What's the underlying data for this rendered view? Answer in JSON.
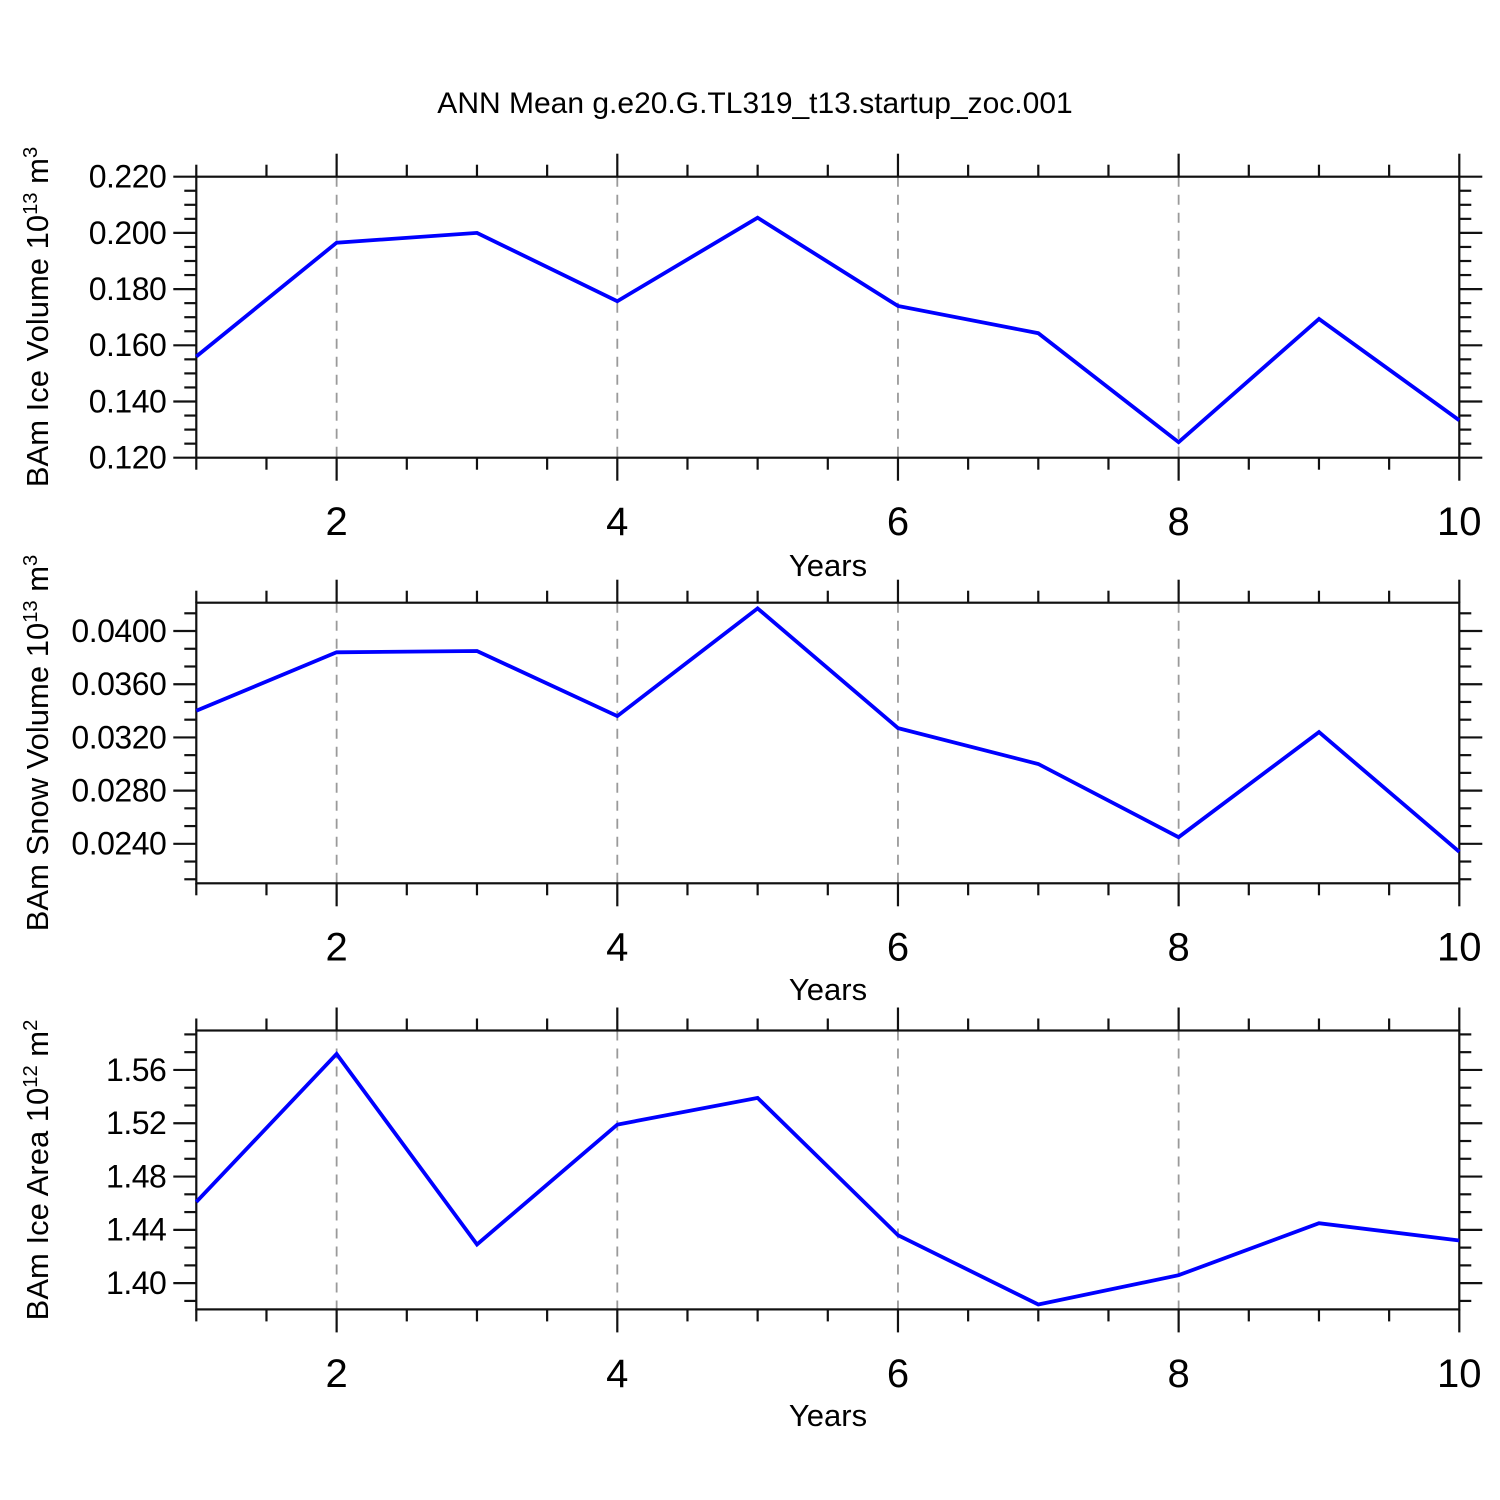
{
  "title": "ANN Mean g.e20.G.TL319_t13.startup_zoc.001",
  "colors": {
    "series_line": "#0000ff",
    "grid_line": "#9a9a9a",
    "axis": "#111111"
  },
  "chart_data": [
    {
      "type": "line",
      "name": "bam-ice-volume",
      "ylabel": "BAm Ice Volume 10^13 m^3",
      "ylabel_parts": {
        "main": "BAm Ice Volume 10",
        "sup1": "13",
        "mid": " m",
        "sup2": "3"
      },
      "xlabel": "Years",
      "x": [
        1,
        2,
        3,
        4,
        5,
        6,
        7,
        8,
        9,
        10
      ],
      "values": [
        0.156,
        0.1965,
        0.2,
        0.1757,
        0.2054,
        0.174,
        0.1643,
        0.1255,
        0.1694,
        0.1333
      ],
      "xlim": [
        1,
        10
      ],
      "ylim": [
        0.12,
        0.22
      ],
      "xticks": {
        "values": [
          2,
          4,
          6,
          8,
          10
        ],
        "labels": [
          "2",
          "4",
          "6",
          "8",
          "10"
        ]
      },
      "x_minor_step": 0.5,
      "grid_x": [
        2,
        4,
        6,
        8
      ],
      "yticks": {
        "values": [
          0.12,
          0.14,
          0.16,
          0.18,
          0.2,
          0.22
        ],
        "labels": [
          "0.120",
          "0.140",
          "0.160",
          "0.180",
          "0.200",
          "0.220"
        ]
      },
      "y_minor_per_interval": 3,
      "grid": "x-dashed-only",
      "legend": "none"
    },
    {
      "type": "line",
      "name": "bam-snow-volume",
      "ylabel": "BAm Snow Volume 10^13 m^3",
      "ylabel_parts": {
        "main": "BAm Snow Volume 10",
        "sup1": "13",
        "mid": " m",
        "sup2": "3"
      },
      "xlabel": "Years",
      "x": [
        1,
        2,
        3,
        4,
        5,
        6,
        7,
        8,
        9,
        10
      ],
      "values": [
        0.034,
        0.0384,
        0.0385,
        0.0336,
        0.0417,
        0.0327,
        0.03,
        0.0245,
        0.0324,
        0.0234
      ],
      "xlim": [
        1,
        10
      ],
      "ylim": [
        0.02103,
        0.04213
      ],
      "xticks": {
        "values": [
          2,
          4,
          6,
          8,
          10
        ],
        "labels": [
          "2",
          "4",
          "6",
          "8",
          "10"
        ]
      },
      "x_minor_step": 0.5,
      "grid_x": [
        2,
        4,
        6,
        8
      ],
      "yticks": {
        "values": [
          0.024,
          0.028,
          0.032,
          0.036,
          0.04
        ],
        "labels": [
          "0.0240",
          "0.0280",
          "0.0320",
          "0.0360",
          "0.0400"
        ]
      },
      "y_minor_per_interval": 2,
      "grid": "x-dashed-only",
      "legend": "none"
    },
    {
      "type": "line",
      "name": "bam-ice-area",
      "ylabel": "BAm Ice Area 10^12 m^2",
      "ylabel_parts": {
        "main": "BAm Ice Area 10",
        "sup1": "12",
        "mid": " m",
        "sup2": "2"
      },
      "xlabel": "Years",
      "x": [
        1,
        2,
        3,
        4,
        5,
        6,
        7,
        8,
        9,
        10
      ],
      "values": [
        1.461,
        1.572,
        1.429,
        1.519,
        1.539,
        1.436,
        1.384,
        1.406,
        1.445,
        1.432
      ],
      "xlim": [
        1,
        10
      ],
      "ylim": [
        1.3803,
        1.5896
      ],
      "xticks": {
        "values": [
          2,
          4,
          6,
          8,
          10
        ],
        "labels": [
          "2",
          "4",
          "6",
          "8",
          "10"
        ]
      },
      "x_minor_step": 0.5,
      "grid_x": [
        2,
        4,
        6,
        8
      ],
      "yticks": {
        "values": [
          1.4,
          1.44,
          1.48,
          1.52,
          1.56
        ],
        "labels": [
          "1.40",
          "1.44",
          "1.48",
          "1.52",
          "1.56"
        ]
      },
      "y_minor_per_interval": 2,
      "grid": "x-dashed-only",
      "legend": "none"
    }
  ]
}
